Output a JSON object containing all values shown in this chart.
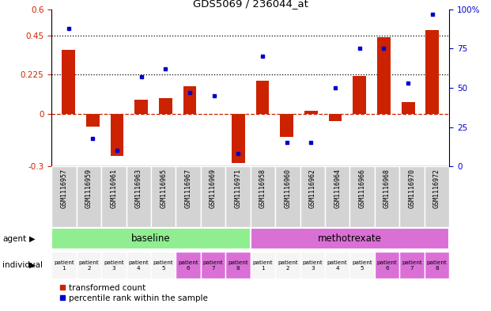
{
  "title": "GDS5069 / 236044_at",
  "gsm_labels": [
    "GSM1116957",
    "GSM1116959",
    "GSM1116961",
    "GSM1116963",
    "GSM1116965",
    "GSM1116967",
    "GSM1116969",
    "GSM1116971",
    "GSM1116958",
    "GSM1116960",
    "GSM1116962",
    "GSM1116964",
    "GSM1116966",
    "GSM1116968",
    "GSM1116970",
    "GSM1116972"
  ],
  "red_values": [
    0.37,
    -0.07,
    -0.24,
    0.08,
    0.09,
    0.16,
    0.0,
    -0.28,
    0.19,
    -0.13,
    0.02,
    -0.04,
    0.22,
    0.44,
    0.07,
    0.48
  ],
  "blue_values": [
    88,
    18,
    10,
    57,
    62,
    47,
    45,
    8,
    70,
    15,
    15,
    50,
    75,
    75,
    53,
    97
  ],
  "ylim_left": [
    -0.3,
    0.6
  ],
  "ylim_right": [
    0,
    100
  ],
  "yticks_left": [
    -0.3,
    0.0,
    0.225,
    0.45,
    0.6
  ],
  "ytick_labels_left": [
    "-0.3",
    "0",
    "0.225",
    "0.45",
    "0.6"
  ],
  "yticks_right": [
    0,
    25,
    50,
    75,
    100
  ],
  "ytick_labels_right": [
    "0",
    "25",
    "50",
    "75",
    "100%"
  ],
  "hlines": [
    0.225,
    0.45
  ],
  "dashed_hline": 0.0,
  "bar_color": "#cc2200",
  "dot_color": "#0000cc",
  "agent_groups": [
    {
      "label": "baseline",
      "start": 0,
      "end": 8,
      "color": "#90ee90"
    },
    {
      "label": "methotrexate",
      "start": 8,
      "end": 16,
      "color": "#da70d6"
    }
  ],
  "individual_labels": [
    "patient\n1",
    "patient\n2",
    "patient\n3",
    "patient\n4",
    "patient\n5",
    "patient\n6",
    "patient\n7",
    "patient\n8",
    "patient\n1",
    "patient\n2",
    "patient\n3",
    "patient\n4",
    "patient\n5",
    "patient\n6",
    "patient\n7",
    "patient\n8"
  ],
  "indiv_colors": [
    "#f5f5f5",
    "#f5f5f5",
    "#f5f5f5",
    "#f5f5f5",
    "#f5f5f5",
    "#da70d6",
    "#da70d6",
    "#da70d6",
    "#f5f5f5",
    "#f5f5f5",
    "#f5f5f5",
    "#f5f5f5",
    "#f5f5f5",
    "#da70d6",
    "#da70d6",
    "#da70d6"
  ],
  "legend_items": [
    "transformed count",
    "percentile rank within the sample"
  ],
  "agent_label": "agent",
  "individual_label": "individual",
  "background_color": "#ffffff",
  "gsm_bg_color": "#d3d3d3",
  "n": 16
}
